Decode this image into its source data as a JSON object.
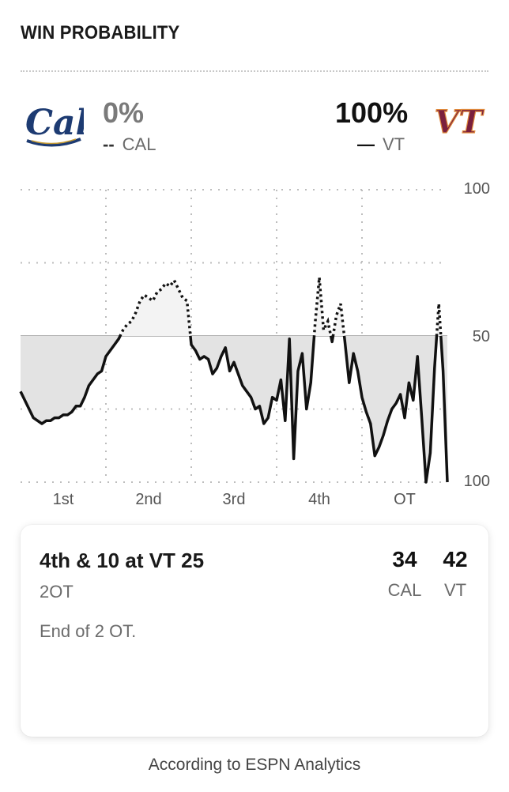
{
  "header": {
    "title": "WIN PROBABILITY"
  },
  "teams": {
    "away": {
      "abbr": "CAL",
      "pct": "0%",
      "logo_text": "Cal",
      "color": "#1d3b72"
    },
    "home": {
      "abbr": "VT",
      "pct": "100%",
      "logo_text": "VT",
      "color": "#7a1f3d"
    }
  },
  "legend": {
    "away_dash": "--",
    "home_dash": "—"
  },
  "chart_data": {
    "type": "area",
    "xlabels": [
      "1st",
      "2nd",
      "3rd",
      "4th",
      "OT"
    ],
    "right_axis_ticks": [
      "100",
      "50",
      "100"
    ],
    "ylim": [
      0,
      100
    ],
    "baseline": 50,
    "grid": true,
    "series": [
      {
        "x": [
          0,
          0.01,
          0.02,
          0.03,
          0.04,
          0.05,
          0.06,
          0.07,
          0.08,
          0.09,
          0.1,
          0.11,
          0.12,
          0.13,
          0.14,
          0.15,
          0.16,
          0.17,
          0.18,
          0.19,
          0.2,
          0.21,
          0.22,
          0.23,
          0.24,
          0.25,
          0.26,
          0.27,
          0.28,
          0.29,
          0.3,
          0.31,
          0.32,
          0.33,
          0.34,
          0.35,
          0.36,
          0.37,
          0.38,
          0.39,
          0.4,
          0.41,
          0.42,
          0.43,
          0.44,
          0.45,
          0.46,
          0.47,
          0.48,
          0.49,
          0.5,
          0.51,
          0.52,
          0.53,
          0.54,
          0.55,
          0.56,
          0.57,
          0.58,
          0.59,
          0.6,
          0.61,
          0.62,
          0.63,
          0.64,
          0.65,
          0.66,
          0.67,
          0.68,
          0.69,
          0.7,
          0.71,
          0.72,
          0.73,
          0.74,
          0.75,
          0.76,
          0.77,
          0.78,
          0.79,
          0.8,
          0.81,
          0.82,
          0.83,
          0.84,
          0.85,
          0.86,
          0.87,
          0.88,
          0.89,
          0.9,
          0.91,
          0.92,
          0.93,
          0.94,
          0.95,
          0.96,
          0.97,
          0.98,
          0.99,
          1.0
        ],
        "y": [
          31,
          28,
          25,
          22,
          21,
          20,
          21,
          21,
          22,
          22,
          23,
          23,
          24,
          26,
          26,
          29,
          33,
          35,
          37,
          38,
          43,
          45,
          47,
          49,
          52,
          54,
          55,
          58,
          62,
          64,
          63,
          62,
          65,
          66,
          68,
          67,
          69,
          66,
          63,
          62,
          47,
          45,
          42,
          43,
          42,
          37,
          39,
          43,
          46,
          38,
          41,
          37,
          33,
          31,
          29,
          25,
          26,
          20,
          22,
          29,
          28,
          35,
          21,
          49,
          8,
          38,
          44,
          25,
          34,
          54,
          70,
          52,
          55,
          48,
          57,
          61,
          48,
          34,
          44,
          38,
          29,
          24,
          20,
          9,
          12,
          16,
          21,
          25,
          27,
          30,
          22,
          34,
          28,
          43,
          22,
          0,
          10,
          39,
          61,
          38,
          0
        ]
      }
    ]
  },
  "card": {
    "play": "4th & 10 at VT 25",
    "period": "2OT",
    "description": "End of 2 OT.",
    "away_score": "34",
    "home_score": "42",
    "away_abbr": "CAL",
    "home_abbr": "VT"
  },
  "footer": {
    "source": "According to ESPN Analytics"
  }
}
